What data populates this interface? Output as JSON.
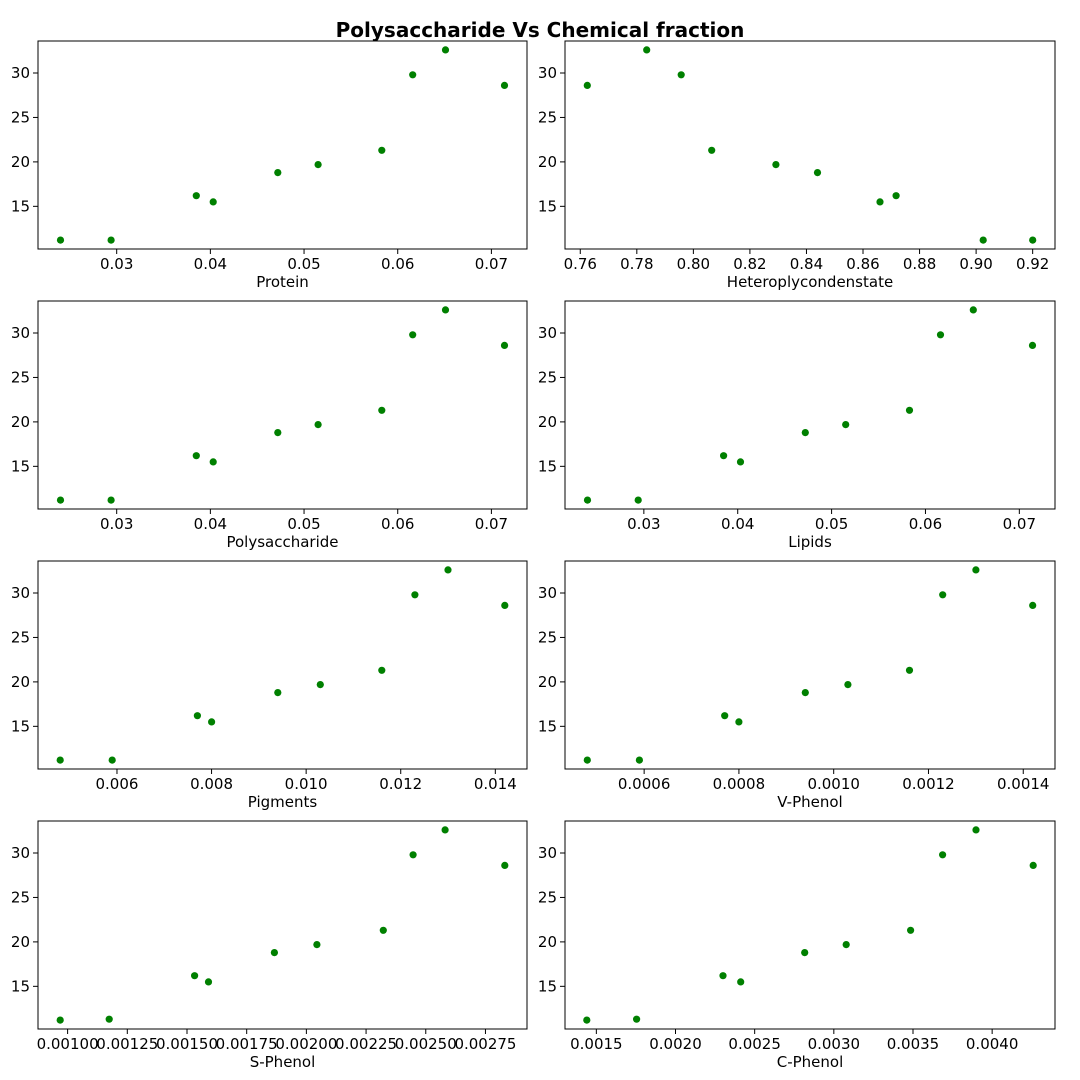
{
  "figure": {
    "title": "Polysaccharide Vs Chemical fraction"
  },
  "colors": {
    "marker": "#008000",
    "axes": "#000000",
    "background": "#ffffff"
  },
  "chart_data": [
    {
      "type": "scatter",
      "xlabel": "Protein",
      "x": [
        0.024,
        0.0294,
        0.0385,
        0.0403,
        0.0472,
        0.0515,
        0.0583,
        0.0616,
        0.0651,
        0.0714
      ],
      "y": [
        11.2,
        11.2,
        16.2,
        15.5,
        18.8,
        19.7,
        21.3,
        29.8,
        32.6,
        28.6
      ],
      "xlim": [
        0.0216,
        0.0738
      ],
      "ylim": [
        10.2,
        33.6
      ],
      "xticks": [
        0.03,
        0.04,
        0.05,
        0.06,
        0.07
      ],
      "xtick_labels": [
        "0.03",
        "0.04",
        "0.05",
        "0.06",
        "0.07"
      ],
      "yticks": [
        15,
        20,
        25,
        30
      ],
      "ytick_labels": [
        "15",
        "20",
        "25",
        "30"
      ],
      "grid": false
    },
    {
      "type": "scatter",
      "xlabel": "Heteroplycondenstate",
      "x": [
        0.7625,
        0.7835,
        0.7957,
        0.8065,
        0.8292,
        0.8439,
        0.866,
        0.8717,
        0.9025,
        0.92
      ],
      "y": [
        28.6,
        32.6,
        29.8,
        21.3,
        19.7,
        18.8,
        15.5,
        16.2,
        11.2,
        11.2
      ],
      "xlim": [
        0.7546,
        0.9279
      ],
      "ylim": [
        10.2,
        33.6
      ],
      "xticks": [
        0.76,
        0.78,
        0.8,
        0.82,
        0.84,
        0.86,
        0.88,
        0.9,
        0.92
      ],
      "xtick_labels": [
        "0.76",
        "0.78",
        "0.80",
        "0.82",
        "0.84",
        "0.86",
        "0.88",
        "0.90",
        "0.92"
      ],
      "yticks": [
        15,
        20,
        25,
        30
      ],
      "ytick_labels": [
        "15",
        "20",
        "25",
        "30"
      ],
      "grid": false
    },
    {
      "type": "scatter",
      "xlabel": "Polysaccharide",
      "x": [
        0.024,
        0.0294,
        0.0385,
        0.0403,
        0.0472,
        0.0515,
        0.0583,
        0.0616,
        0.0651,
        0.0714
      ],
      "y": [
        11.2,
        11.2,
        16.2,
        15.5,
        18.8,
        19.7,
        21.3,
        29.8,
        32.6,
        28.6
      ],
      "xlim": [
        0.0216,
        0.0738
      ],
      "ylim": [
        10.2,
        33.6
      ],
      "xticks": [
        0.03,
        0.04,
        0.05,
        0.06,
        0.07
      ],
      "xtick_labels": [
        "0.03",
        "0.04",
        "0.05",
        "0.06",
        "0.07"
      ],
      "yticks": [
        15,
        20,
        25,
        30
      ],
      "ytick_labels": [
        "15",
        "20",
        "25",
        "30"
      ],
      "grid": false
    },
    {
      "type": "scatter",
      "xlabel": "Lipids",
      "x": [
        0.024,
        0.0294,
        0.0385,
        0.0403,
        0.0472,
        0.0515,
        0.0583,
        0.0616,
        0.0651,
        0.0714
      ],
      "y": [
        11.2,
        11.2,
        16.2,
        15.5,
        18.8,
        19.7,
        21.3,
        29.8,
        32.6,
        28.6
      ],
      "xlim": [
        0.0216,
        0.0738
      ],
      "ylim": [
        10.2,
        33.6
      ],
      "xticks": [
        0.03,
        0.04,
        0.05,
        0.06,
        0.07
      ],
      "xtick_labels": [
        "0.03",
        "0.04",
        "0.05",
        "0.06",
        "0.07"
      ],
      "yticks": [
        15,
        20,
        25,
        30
      ],
      "ytick_labels": [
        "15",
        "20",
        "25",
        "30"
      ],
      "grid": false
    },
    {
      "type": "scatter",
      "xlabel": "Pigments",
      "x": [
        0.0048,
        0.0059,
        0.0077,
        0.008,
        0.0094,
        0.0103,
        0.0116,
        0.0123,
        0.013,
        0.0142
      ],
      "y": [
        11.2,
        11.2,
        16.2,
        15.5,
        18.8,
        19.7,
        21.3,
        29.8,
        32.6,
        28.6
      ],
      "xlim": [
        0.00433,
        0.01467
      ],
      "ylim": [
        10.2,
        33.6
      ],
      "xticks": [
        0.006,
        0.008,
        0.01,
        0.012,
        0.014
      ],
      "xtick_labels": [
        "0.006",
        "0.008",
        "0.010",
        "0.012",
        "0.014"
      ],
      "yticks": [
        15,
        20,
        25,
        30
      ],
      "ytick_labels": [
        "15",
        "20",
        "25",
        "30"
      ],
      "grid": false
    },
    {
      "type": "scatter",
      "xlabel": "V-Phenol",
      "x": [
        0.00048,
        0.00059,
        0.00077,
        0.0008,
        0.00094,
        0.00103,
        0.00116,
        0.00123,
        0.0013,
        0.00142
      ],
      "y": [
        11.2,
        11.2,
        16.2,
        15.5,
        18.8,
        19.7,
        21.3,
        29.8,
        32.6,
        28.6
      ],
      "xlim": [
        0.000433,
        0.001467
      ],
      "ylim": [
        10.2,
        33.6
      ],
      "xticks": [
        0.0006,
        0.0008,
        0.001,
        0.0012,
        0.0014
      ],
      "xtick_labels": [
        "0.0006",
        "0.0008",
        "0.0010",
        "0.0012",
        "0.0014"
      ],
      "yticks": [
        15,
        20,
        25,
        30
      ],
      "ytick_labels": [
        "15",
        "20",
        "25",
        "30"
      ],
      "grid": false
    },
    {
      "type": "scatter",
      "xlabel": "S-Phenol",
      "x": [
        0.000969,
        0.001174,
        0.001532,
        0.00159,
        0.001866,
        0.002044,
        0.002322,
        0.002447,
        0.002581,
        0.002831
      ],
      "y": [
        11.2,
        11.3,
        16.2,
        15.5,
        18.8,
        19.7,
        21.3,
        29.8,
        32.6,
        28.6
      ],
      "xlim": [
        0.000876,
        0.002924
      ],
      "ylim": [
        10.2,
        33.6
      ],
      "xticks": [
        0.001,
        0.00125,
        0.0015,
        0.00175,
        0.002,
        0.00225,
        0.0025,
        0.00275
      ],
      "xtick_labels": [
        "0.00100",
        "0.00125",
        "0.00150",
        "0.00175",
        "0.00200",
        "0.00225",
        "0.00250",
        "0.00275"
      ],
      "yticks": [
        15,
        20,
        25,
        30
      ],
      "ytick_labels": [
        "15",
        "20",
        "25",
        "30"
      ],
      "grid": false
    },
    {
      "type": "scatter",
      "xlabel": "C-Phenol",
      "x": [
        0.00144,
        0.001754,
        0.0023,
        0.002412,
        0.002816,
        0.003078,
        0.003485,
        0.003687,
        0.003898,
        0.004259
      ],
      "y": [
        11.2,
        11.3,
        16.2,
        15.5,
        18.8,
        19.7,
        21.3,
        29.8,
        32.6,
        28.6
      ],
      "xlim": [
        0.001302,
        0.004397
      ],
      "ylim": [
        10.2,
        33.6
      ],
      "xticks": [
        0.0015,
        0.002,
        0.0025,
        0.003,
        0.0035,
        0.004
      ],
      "xtick_labels": [
        "0.0015",
        "0.0020",
        "0.0025",
        "0.0030",
        "0.0035",
        "0.0040"
      ],
      "yticks": [
        15,
        20,
        25,
        30
      ],
      "ytick_labels": [
        "15",
        "20",
        "25",
        "30"
      ],
      "grid": false
    }
  ]
}
